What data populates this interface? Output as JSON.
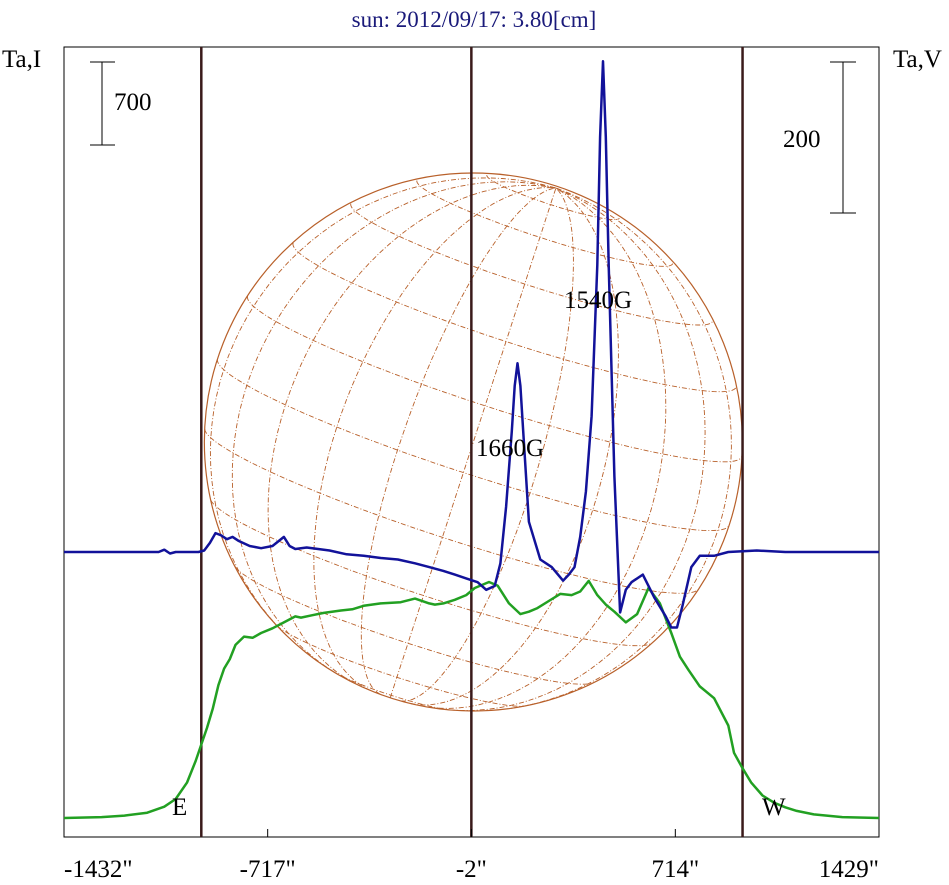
{
  "chart_data": {
    "type": "line",
    "title": "sun: 2012/09/17: 3.80[cm]",
    "left_axis_label": "Ta,I",
    "right_axis_label": "Ta,V",
    "x_ticks": [
      "-1432\"",
      "-717\"",
      "-2\"",
      "714\"",
      "1429\""
    ],
    "x_tick_values": [
      -1432,
      -717,
      -2,
      714,
      1429
    ],
    "xlim": [
      -1432,
      1429
    ],
    "scale_bars": [
      {
        "label": "700",
        "side": "left"
      },
      {
        "label": "200",
        "side": "right"
      }
    ],
    "limb_labels": {
      "east": "E",
      "west": "W"
    },
    "vertical_lines_arcsec": [
      -950,
      -2,
      950
    ],
    "annotations": [
      {
        "text": "1540G",
        "x": 465
      },
      {
        "text": "1660G",
        "x": 160
      }
    ],
    "colors": {
      "intensity": "#22a022",
      "polarization": "#12129a",
      "disk": "#b8602a",
      "grid": "#b8602a",
      "vertical": "#3a1a1a",
      "title": "#1a1a7a"
    },
    "series": [
      {
        "name": "Ta,I",
        "color": "#22a022",
        "x": [
          -1432,
          -1300,
          -1220,
          -1140,
          -1080,
          -1040,
          -1000,
          -970,
          -950,
          -930,
          -910,
          -890,
          -870,
          -850,
          -830,
          -800,
          -770,
          -740,
          -700,
          -660,
          -620,
          -600,
          -560,
          -520,
          -460,
          -420,
          -380,
          -320,
          -250,
          -200,
          -150,
          -130,
          -100,
          -60,
          -20,
          10,
          60,
          90,
          130,
          170,
          200,
          230,
          270,
          310,
          350,
          380,
          410,
          440,
          470,
          500,
          540,
          580,
          620,
          660,
          700,
          730,
          760,
          800,
          850,
          900,
          920,
          950,
          980,
          1020,
          1060,
          1100,
          1140,
          1200,
          1300,
          1429
        ],
        "y": [
          0,
          8,
          20,
          45,
          95,
          160,
          300,
          480,
          620,
          760,
          920,
          1120,
          1260,
          1340,
          1460,
          1530,
          1520,
          1560,
          1600,
          1650,
          1700,
          1690,
          1710,
          1730,
          1750,
          1760,
          1790,
          1810,
          1820,
          1850,
          1810,
          1800,
          1810,
          1840,
          1880,
          1940,
          1990,
          1960,
          1810,
          1720,
          1740,
          1770,
          1830,
          1890,
          1880,
          1910,
          2000,
          1880,
          1800,
          1740,
          1650,
          1720,
          1940,
          1810,
          1560,
          1360,
          1250,
          1110,
          1010,
          780,
          550,
          420,
          300,
          190,
          130,
          90,
          60,
          30,
          8,
          0
        ]
      },
      {
        "name": "Ta,V",
        "color": "#12129a",
        "x": [
          -1432,
          -1100,
          -1080,
          -1060,
          -1040,
          -1000,
          -960,
          -940,
          -920,
          -900,
          -880,
          -860,
          -840,
          -820,
          -780,
          -740,
          -700,
          -660,
          -640,
          -620,
          -580,
          -540,
          -500,
          -440,
          -380,
          -320,
          -260,
          -200,
          -150,
          -100,
          -60,
          -20,
          20,
          50,
          80,
          100,
          120,
          140,
          150,
          160,
          170,
          180,
          200,
          240,
          280,
          320,
          340,
          360,
          380,
          400,
          420,
          440,
          450,
          460,
          470,
          480,
          500,
          520,
          540,
          560,
          600,
          640,
          680,
          700,
          720,
          740,
          770,
          800,
          850,
          900,
          1000,
          1100,
          1429
        ],
        "y": [
          0,
          0,
          3,
          -2,
          0,
          0,
          0,
          2,
          12,
          25,
          22,
          17,
          20,
          15,
          8,
          5,
          8,
          20,
          8,
          4,
          6,
          4,
          2,
          -3,
          -5,
          -8,
          -10,
          -15,
          -20,
          -25,
          -30,
          -35,
          -40,
          -50,
          -45,
          -15,
          60,
          160,
          220,
          250,
          220,
          160,
          40,
          -10,
          -20,
          -38,
          -30,
          -20,
          20,
          80,
          180,
          380,
          550,
          650,
          550,
          380,
          100,
          -80,
          -50,
          -40,
          -30,
          -60,
          -85,
          -100,
          -100,
          -70,
          -20,
          -5,
          -5,
          0,
          2,
          0,
          0
        ]
      }
    ]
  }
}
